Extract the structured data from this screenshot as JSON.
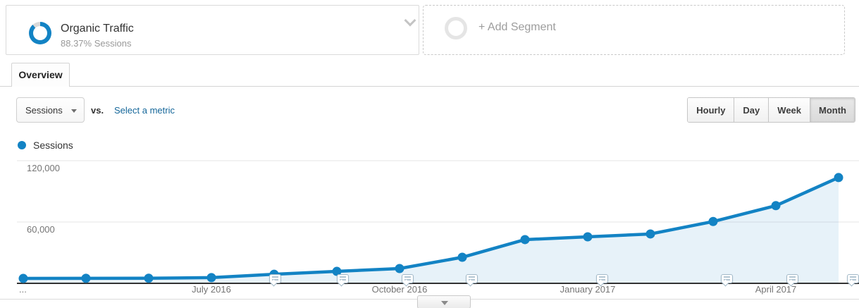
{
  "header": {
    "segment_card": {
      "title": "Organic Traffic",
      "subtitle": "88.37% Sessions",
      "percent_sessions": 88.37
    },
    "add_segment_label": "+ Add Segment"
  },
  "tabs": {
    "overview_label": "Overview"
  },
  "toolbar": {
    "metric_dropdown_value": "Sessions",
    "vs_label": "vs.",
    "select_metric_label": "Select a metric",
    "granularity_buttons": [
      {
        "label": "Hourly",
        "selected": false
      },
      {
        "label": "Day",
        "selected": false
      },
      {
        "label": "Week",
        "selected": false
      },
      {
        "label": "Month",
        "selected": true
      }
    ]
  },
  "legend": {
    "label": "Sessions"
  },
  "colors": {
    "series_line": "#1383c4",
    "area_fill": "rgba(19,131,196,0.10)",
    "link_blue": "#15679a",
    "axis_line": "#333333",
    "gridline": "#e6e6e6"
  },
  "chart_data": {
    "type": "area",
    "series_name": "Sessions",
    "x": [
      "Apr 2016",
      "May 2016",
      "Jun 2016",
      "Jul 2016",
      "Aug 2016",
      "Sep 2016",
      "Oct 2016",
      "Nov 2016",
      "Dec 2016",
      "Jan 2017",
      "Feb 2017",
      "Mar 2017",
      "Apr 2017",
      "May 2017"
    ],
    "values": [
      4800,
      4900,
      5000,
      5600,
      8900,
      11700,
      14500,
      25500,
      42800,
      45500,
      48300,
      60500,
      76000,
      103500
    ],
    "x_tick_labels": [
      "...",
      "July 2016",
      "October 2016",
      "January 2017",
      "April 2017"
    ],
    "y_tick_labels": [
      "120,000",
      "60,000"
    ],
    "y_ticks": [
      120000,
      60000
    ],
    "ylim": [
      0,
      135000
    ],
    "grid": "horizontal",
    "legend_position": "top-left",
    "annotation_marker_x_px": [
      390,
      486,
      578,
      669,
      854,
      1031,
      1124,
      1210
    ]
  }
}
